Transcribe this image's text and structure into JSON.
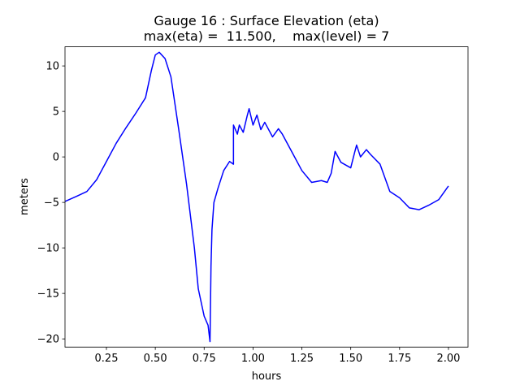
{
  "chart_data": {
    "type": "line",
    "title": "Gauge 16 : Surface Elevation (eta)",
    "subtitle": "max(eta) =  11.500,    max(level) = 7",
    "xlabel": "hours",
    "ylabel": "meters",
    "xlim": [
      0.038,
      2.1
    ],
    "ylim": [
      -20.9,
      12.1
    ],
    "xticks": [
      0.25,
      {
        "value": 0.5,
        "label": "0.50"
      },
      0.75,
      {
        "value": 1.0,
        "label": "1.00"
      },
      1.25,
      {
        "value": 1.5,
        "label": "1.50"
      },
      1.75,
      {
        "value": 2.0,
        "label": "2.00"
      }
    ],
    "yticks": [
      {
        "value": -20,
        "label": "−20"
      },
      {
        "value": -15,
        "label": "−15"
      },
      {
        "value": -10,
        "label": "−10"
      },
      {
        "value": -5,
        "label": "−5"
      },
      0,
      5,
      10
    ],
    "grid": false,
    "series": [
      {
        "color": "#0000ff",
        "x": [
          0.038,
          0.1,
          0.15,
          0.2,
          0.25,
          0.3,
          0.35,
          0.4,
          0.45,
          0.48,
          0.5,
          0.52,
          0.55,
          0.58,
          0.62,
          0.66,
          0.7,
          0.72,
          0.75,
          0.77,
          0.78,
          0.785,
          0.79,
          0.8,
          0.82,
          0.85,
          0.88,
          0.9,
          0.9,
          0.92,
          0.93,
          0.95,
          0.97,
          0.98,
          1.0,
          1.02,
          1.04,
          1.06,
          1.1,
          1.13,
          1.15,
          1.2,
          1.25,
          1.3,
          1.35,
          1.38,
          1.4,
          1.42,
          1.45,
          1.5,
          1.52,
          1.53,
          1.55,
          1.58,
          1.6,
          1.65,
          1.7,
          1.75,
          1.8,
          1.85,
          1.9,
          1.95,
          2.0
        ],
        "values": [
          -4.9,
          -4.3,
          -3.8,
          -2.5,
          -0.5,
          1.5,
          3.2,
          4.8,
          6.5,
          9.5,
          11.2,
          11.5,
          10.8,
          8.8,
          3,
          -3,
          -10,
          -14.5,
          -17.5,
          -18.5,
          -20.3,
          -12,
          -8,
          -5,
          -3.5,
          -1.5,
          -0.5,
          -0.8,
          3.5,
          2.5,
          3.5,
          2.7,
          4.5,
          5.3,
          3.5,
          4.6,
          3,
          3.8,
          2.2,
          3.1,
          2.5,
          0.5,
          -1.5,
          -2.8,
          -2.6,
          -2.8,
          -1.8,
          0.6,
          -0.6,
          -1.2,
          0.5,
          1.3,
          0,
          0.8,
          0.3,
          -0.8,
          -3.8,
          -4.5,
          -5.6,
          -5.8,
          -5.3,
          -4.7,
          -3.2
        ]
      }
    ]
  }
}
